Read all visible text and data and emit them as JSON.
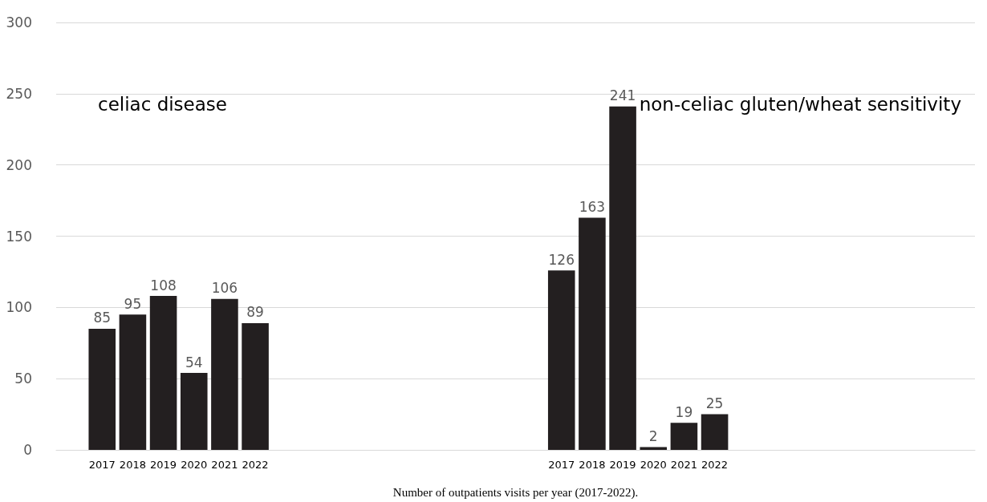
{
  "chart_data": {
    "type": "bar",
    "xlabel": "Number of outpatients visits per year (2017-2022).",
    "categories": [
      null,
      "2017",
      "2018",
      "2019",
      "2020",
      "2021",
      "2022",
      null,
      null,
      null,
      null,
      null,
      null,
      null,
      null,
      null,
      "2017",
      "2018",
      "2019",
      "2020",
      "2021",
      "2022",
      null,
      null,
      null,
      null,
      null,
      null,
      null,
      null
    ],
    "values": [
      null,
      85,
      95,
      108,
      54,
      106,
      89,
      null,
      null,
      null,
      null,
      null,
      null,
      null,
      null,
      null,
      126,
      163,
      241,
      2,
      19,
      25,
      null,
      null,
      null,
      null,
      null,
      null,
      null,
      null
    ],
    "color": "#231f20",
    "ylim": [
      0,
      300
    ],
    "yticks": [
      0,
      50,
      100,
      150,
      200,
      250,
      300
    ],
    "grid": "y",
    "data_labels": true,
    "annotations": [
      "celiac disease",
      "non-celiac gluten/wheat sensitivity"
    ]
  }
}
